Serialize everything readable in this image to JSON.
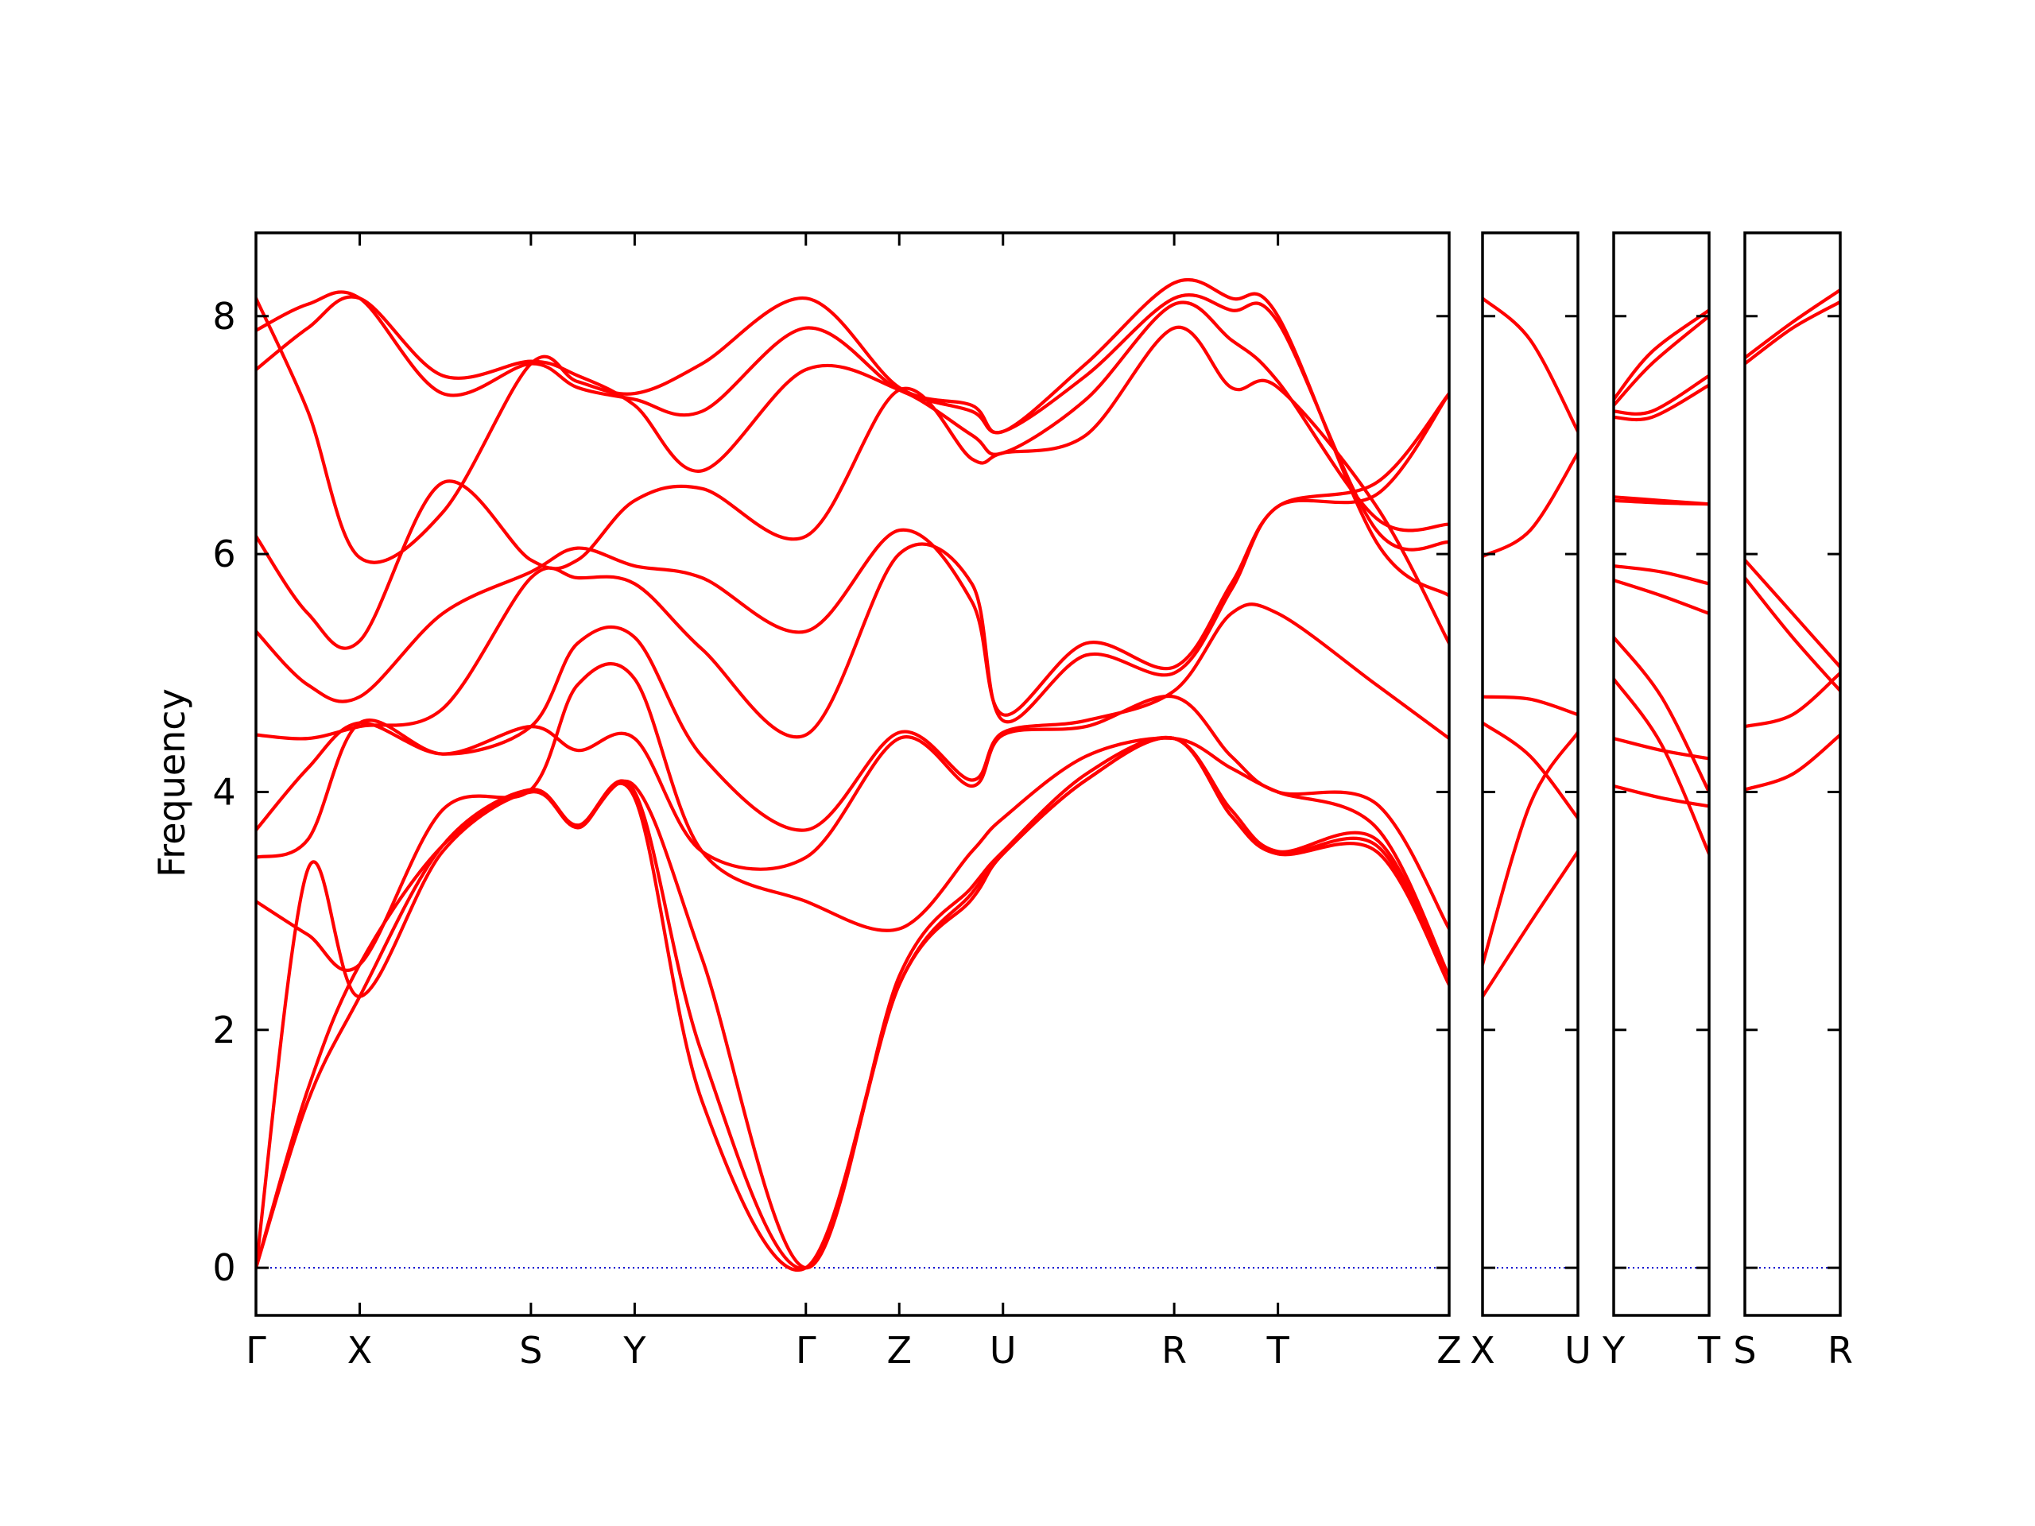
{
  "chart_data": {
    "type": "line",
    "title": "",
    "ylabel": "Frequency",
    "ylim": [
      -0.4,
      8.7
    ],
    "yticks": [
      0,
      2,
      4,
      6,
      8
    ],
    "grid": false,
    "colors": {
      "band": "#ff0000",
      "zero_line": "#0000cc",
      "frame": "#000000"
    },
    "panels": [
      {
        "name": "main",
        "xlim": [
          0,
          11.5
        ],
        "ticks": [
          {
            "x": 0,
            "label": "Γ"
          },
          {
            "x": 1,
            "label": "X"
          },
          {
            "x": 2.65,
            "label": "S"
          },
          {
            "x": 3.65,
            "label": "Y"
          },
          {
            "x": 5.3,
            "label": "Γ"
          },
          {
            "x": 6.2,
            "label": "Z"
          },
          {
            "x": 7.2,
            "label": "U"
          },
          {
            "x": 8.85,
            "label": "R"
          },
          {
            "x": 9.85,
            "label": "T"
          },
          {
            "x": 11.5,
            "label": "Z"
          }
        ],
        "series": [
          {
            "x": [
              0,
              0.5,
              1,
              1.8,
              2.65,
              3.1,
              3.65,
              4.3,
              5.3,
              6.2,
              6.9,
              7.2,
              8.0,
              8.85,
              9.4,
              9.85,
              10.8,
              11.5
            ],
            "y": [
              8.15,
              7.2,
              5.97,
              6.35,
              7.6,
              7.45,
              7.35,
              7.6,
              8.15,
              7.4,
              7.25,
              7.03,
              7.6,
              8.28,
              8.15,
              8.0,
              6.1,
              5.65
            ]
          },
          {
            "x": [
              0,
              0.5,
              1,
              1.8,
              2.65,
              3.1,
              3.65,
              4.3,
              5.3,
              6.2,
              6.9,
              7.2,
              8.0,
              8.85,
              9.4,
              9.85,
              10.8,
              11.5
            ],
            "y": [
              7.88,
              8.1,
              8.15,
              7.35,
              7.6,
              7.4,
              7.3,
              7.2,
              7.9,
              7.38,
              7.2,
              7.03,
              7.5,
              8.15,
              8.05,
              7.95,
              6.2,
              6.1
            ]
          },
          {
            "x": [
              0,
              0.5,
              1,
              1.8,
              2.65,
              3.1,
              3.65,
              4.3,
              5.3,
              6.2,
              6.9,
              7.2,
              8.0,
              8.85,
              9.4,
              9.85,
              10.8,
              11.5
            ],
            "y": [
              7.55,
              7.9,
              8.15,
              7.5,
              7.62,
              7.5,
              7.25,
              6.7,
              7.55,
              7.38,
              7.0,
              6.85,
              7.3,
              8.1,
              7.8,
              7.45,
              6.3,
              6.25
            ]
          },
          {
            "x": [
              0,
              0.5,
              1,
              1.8,
              2.65,
              3.1,
              3.65,
              4.3,
              5.3,
              6.2,
              6.9,
              7.2,
              8.0,
              8.85,
              9.4,
              9.85,
              10.8,
              11.5
            ],
            "y": [
              6.15,
              5.5,
              5.27,
              6.6,
              5.95,
              5.95,
              6.45,
              6.55,
              6.15,
              7.38,
              6.8,
              6.85,
              7.0,
              7.9,
              7.4,
              7.4,
              6.4,
              5.25
            ]
          },
          {
            "x": [
              0,
              0.5,
              1,
              1.8,
              2.65,
              3.1,
              3.65,
              4.3,
              5.3,
              6.2,
              6.9,
              7.2,
              8.0,
              8.85,
              9.4,
              9.85,
              10.8,
              11.5
            ],
            "y": [
              5.35,
              4.9,
              4.8,
              5.5,
              5.85,
              6.05,
              5.9,
              5.8,
              5.35,
              6.2,
              5.6,
              4.65,
              5.25,
              5.05,
              5.75,
              6.4,
              6.6,
              7.35
            ]
          },
          {
            "x": [
              0,
              0.5,
              1,
              1.8,
              2.65,
              3.1,
              3.65,
              4.3,
              5.3,
              6.2,
              6.9,
              7.2,
              8.0,
              8.85,
              9.4,
              9.85,
              10.8,
              11.5
            ],
            "y": [
              4.48,
              4.45,
              4.55,
              4.7,
              5.8,
              5.8,
              5.75,
              5.2,
              4.48,
              6.0,
              5.75,
              4.6,
              5.15,
              5.0,
              5.7,
              6.4,
              6.5,
              7.35
            ]
          },
          {
            "x": [
              0,
              0.5,
              1,
              1.8,
              2.65,
              3.1,
              3.65,
              4.3,
              5.3,
              6.2,
              6.9,
              7.2,
              8.0,
              8.85,
              9.4,
              9.85,
              10.8,
              11.5
            ],
            "y": [
              3.68,
              4.2,
              4.58,
              4.32,
              4.55,
              5.25,
              5.3,
              4.3,
              3.68,
              4.5,
              4.1,
              4.5,
              4.6,
              4.85,
              5.5,
              5.5,
              4.9,
              4.45
            ]
          },
          {
            "x": [
              0,
              0.5,
              1,
              1.8,
              2.65,
              3.1,
              3.65,
              4.3,
              5.3,
              6.2,
              6.9,
              7.2,
              8.0,
              8.85,
              9.4,
              9.85,
              10.8,
              11.5
            ],
            "y": [
              3.45,
              3.6,
              4.58,
              4.32,
              4.55,
              4.35,
              4.45,
              3.5,
              3.45,
              4.45,
              4.05,
              4.48,
              4.55,
              4.8,
              4.3,
              4.0,
              3.9,
              2.85
            ]
          },
          {
            "x": [
              0,
              0.5,
              1,
              1.8,
              2.65,
              3.1,
              3.65,
              4.3,
              5.3,
              6.2,
              6.9,
              7.2,
              8.0,
              8.85,
              9.4,
              9.85,
              10.8,
              11.5
            ],
            "y": [
              3.08,
              2.8,
              2.55,
              3.85,
              4.02,
              4.9,
              4.95,
              3.5,
              3.08,
              2.85,
              3.5,
              3.78,
              4.3,
              4.45,
              4.2,
              4.0,
              3.7,
              2.45
            ]
          },
          {
            "x": [
              0,
              0.5,
              1,
              1.8,
              2.65,
              3.1,
              3.65,
              4.3,
              5.3,
              6.2,
              6.9,
              7.2,
              8.0,
              8.85,
              9.4,
              9.85,
              10.8,
              11.5
            ],
            "y": [
              0,
              1.5,
              2.55,
              3.55,
              4.02,
              3.72,
              4.05,
              2.6,
              0,
              2.45,
              3.2,
              3.5,
              4.15,
              4.45,
              3.85,
              3.5,
              3.6,
              2.38
            ]
          },
          {
            "x": [
              0,
              0.5,
              1,
              1.8,
              2.65,
              3.1,
              3.65,
              4.3,
              5.3,
              6.2,
              6.9,
              7.2,
              8.0,
              8.85,
              9.4,
              9.85,
              10.8,
              11.5
            ],
            "y": [
              0,
              1.4,
              2.28,
              3.55,
              4.02,
              3.72,
              4.0,
              1.8,
              0,
              2.38,
              3.15,
              3.48,
              4.1,
              4.45,
              3.8,
              3.48,
              3.55,
              2.38
            ]
          },
          {
            "x": [
              0,
              0.5,
              1,
              1.8,
              2.65,
              3.1,
              3.65,
              4.3,
              5.3,
              6.2,
              6.9,
              7.2,
              8.0,
              8.85,
              9.4,
              9.85,
              10.8,
              11.5
            ],
            "y": [
              0,
              3.35,
              2.28,
              3.5,
              4.0,
              3.7,
              3.95,
              1.4,
              0,
              2.38,
              3.1,
              3.48,
              4.1,
              4.45,
              3.8,
              3.48,
              3.5,
              2.38
            ]
          }
        ]
      },
      {
        "name": "x-u",
        "xlim": [
          0,
          1
        ],
        "ticks": [
          {
            "x": 0,
            "label": "X"
          },
          {
            "x": 1,
            "label": "U"
          }
        ],
        "series": [
          {
            "x": [
              0,
              0.5,
              1
            ],
            "y": [
              8.15,
              7.8,
              7.03
            ]
          },
          {
            "x": [
              0,
              0.5,
              1
            ],
            "y": [
              5.98,
              6.2,
              6.85
            ]
          },
          {
            "x": [
              0,
              0.5,
              1
            ],
            "y": [
              4.8,
              4.78,
              4.65
            ]
          },
          {
            "x": [
              0,
              0.5,
              1
            ],
            "y": [
              4.58,
              4.3,
              3.78
            ]
          },
          {
            "x": [
              0,
              0.5,
              1
            ],
            "y": [
              2.55,
              3.9,
              4.5
            ]
          },
          {
            "x": [
              0,
              0.5,
              1
            ],
            "y": [
              2.28,
              2.9,
              3.5
            ]
          }
        ]
      },
      {
        "name": "y-t",
        "xlim": [
          0,
          1
        ],
        "ticks": [
          {
            "x": 0,
            "label": "Y"
          },
          {
            "x": 1,
            "label": "T"
          }
        ],
        "series": [
          {
            "x": [
              0,
              0.4,
              1
            ],
            "y": [
              7.3,
              7.7,
              8.05
            ]
          },
          {
            "x": [
              0,
              0.4,
              1
            ],
            "y": [
              7.25,
              7.6,
              8.0
            ]
          },
          {
            "x": [
              0,
              0.4,
              1
            ],
            "y": [
              7.2,
              7.2,
              7.5
            ]
          },
          {
            "x": [
              0,
              0.4,
              1
            ],
            "y": [
              7.15,
              7.15,
              7.42
            ]
          },
          {
            "x": [
              0,
              0.5,
              1
            ],
            "y": [
              6.48,
              6.45,
              6.42
            ]
          },
          {
            "x": [
              0,
              0.5,
              1
            ],
            "y": [
              6.45,
              6.43,
              6.42
            ]
          },
          {
            "x": [
              0,
              0.5,
              1
            ],
            "y": [
              5.9,
              5.85,
              5.75
            ]
          },
          {
            "x": [
              0,
              0.5,
              1
            ],
            "y": [
              5.78,
              5.65,
              5.5
            ]
          },
          {
            "x": [
              0,
              0.5,
              1
            ],
            "y": [
              5.3,
              4.8,
              4.0
            ]
          },
          {
            "x": [
              0,
              0.5,
              1
            ],
            "y": [
              4.95,
              4.4,
              3.48
            ]
          },
          {
            "x": [
              0,
              0.5,
              1
            ],
            "y": [
              4.45,
              4.35,
              4.28
            ]
          },
          {
            "x": [
              0,
              0.5,
              1
            ],
            "y": [
              4.05,
              3.95,
              3.88
            ]
          }
        ]
      },
      {
        "name": "s-r",
        "xlim": [
          0,
          1
        ],
        "ticks": [
          {
            "x": 0,
            "label": "S"
          },
          {
            "x": 1,
            "label": "R"
          }
        ],
        "series": [
          {
            "x": [
              0,
              0.5,
              1
            ],
            "y": [
              7.65,
              7.95,
              8.22
            ]
          },
          {
            "x": [
              0,
              0.5,
              1
            ],
            "y": [
              7.6,
              7.9,
              8.12
            ]
          },
          {
            "x": [
              0,
              0.5,
              1
            ],
            "y": [
              5.95,
              5.5,
              5.05
            ]
          },
          {
            "x": [
              0,
              0.5,
              1
            ],
            "y": [
              5.8,
              5.3,
              4.85
            ]
          },
          {
            "x": [
              0,
              0.5,
              1
            ],
            "y": [
              4.55,
              4.65,
              5.0
            ]
          },
          {
            "x": [
              0,
              0.5,
              1
            ],
            "y": [
              4.02,
              4.15,
              4.48
            ]
          }
        ]
      }
    ]
  }
}
